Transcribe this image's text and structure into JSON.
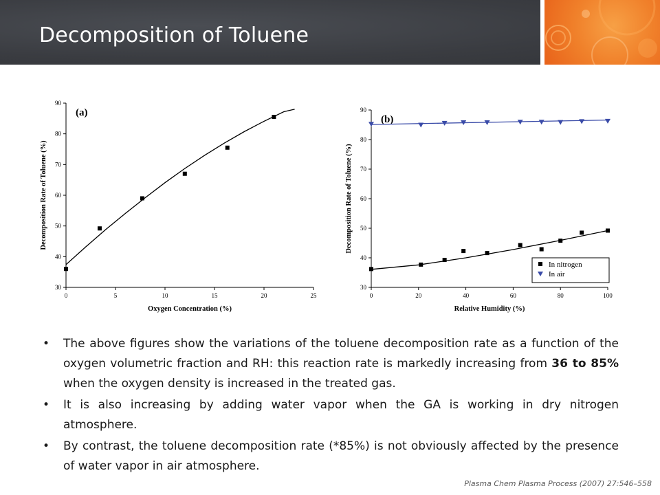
{
  "slide": {
    "title": "Decomposition of Toluene",
    "citation": "Plasma Chem Plasma Process (2007) 27:546–558"
  },
  "bullets": [
    {
      "before": "The above figures show the variations of the toluene decomposition rate as a function of the oxygen volumetric fraction and RH: this reaction rate is markedly increasing from ",
      "bold": "36 to 85%",
      "after": " when the oxygen density is increased in the treated gas."
    },
    {
      "before": "It is also increasing by adding water vapor when the GA is working in dry nitrogen atmosphere.",
      "bold": "",
      "after": ""
    },
    {
      "before": "By contrast, the toluene decomposition rate (*85%) is not obviously affected by the presence of water vapor in air atmosphere.",
      "bold": "",
      "after": ""
    }
  ],
  "chart_data": [
    {
      "type": "scatter",
      "panel_label": "(a)",
      "xlabel": "Oxygen Concentration (%)",
      "ylabel": "Decomposition Rate of Toluene (%)",
      "xlim": [
        0,
        25
      ],
      "ylim": [
        30,
        90
      ],
      "xticks": [
        0,
        5,
        10,
        15,
        20,
        25
      ],
      "yticks": [
        30,
        40,
        50,
        60,
        70,
        80,
        90
      ],
      "series": [
        {
          "x": [
            0,
            3.4,
            7.7,
            12,
            16.3,
            21
          ],
          "y": [
            36,
            49.2,
            59,
            67,
            75.5,
            85.5
          ],
          "marker": "square",
          "color": "#000000"
        }
      ],
      "fit": {
        "x": [
          0,
          2,
          4,
          6,
          8,
          10,
          12,
          14,
          16,
          18,
          20,
          22,
          23.1
        ],
        "y": [
          37.4,
          43.2,
          48.8,
          54.1,
          59.2,
          64.1,
          68.7,
          73.0,
          77.0,
          80.7,
          84.1,
          87.2,
          88.0
        ]
      },
      "grid": false
    },
    {
      "type": "line",
      "panel_label": "(b)",
      "xlabel": "Relative Humidity (%)",
      "ylabel": "Decomposition Rate of Toluene (%)",
      "xlim": [
        0,
        100
      ],
      "ylim": [
        30,
        90
      ],
      "xticks": [
        0,
        20,
        40,
        60,
        80,
        100
      ],
      "yticks": [
        30,
        40,
        50,
        60,
        70,
        80,
        90
      ],
      "legend_position": "bottom-right",
      "series": [
        {
          "name": "In nitrogen",
          "marker": "square",
          "color": "#000000",
          "x": [
            0,
            21,
            31,
            39,
            49,
            63,
            72,
            80,
            89,
            100
          ],
          "y": [
            36.2,
            37.7,
            39.3,
            42.3,
            41.6,
            44.3,
            42.9,
            45.8,
            48.5,
            49.2
          ],
          "fit": {
            "x": [
              0,
              20,
              40,
              60,
              80,
              100
            ],
            "y": [
              36.1,
              37.6,
              40.0,
              42.8,
              45.9,
              49.2
            ]
          }
        },
        {
          "name": "In air",
          "marker": "triangle-down",
          "color": "#3a4ba8",
          "x": [
            0,
            21,
            31,
            39,
            49,
            63,
            72,
            80,
            89,
            100
          ],
          "y": [
            85.3,
            85.0,
            85.6,
            85.8,
            85.8,
            86.0,
            86.0,
            85.9,
            86.2,
            86.3
          ],
          "fit": {
            "x": [
              0,
              100
            ],
            "y": [
              85.1,
              86.6
            ]
          }
        }
      ],
      "grid": false
    }
  ]
}
